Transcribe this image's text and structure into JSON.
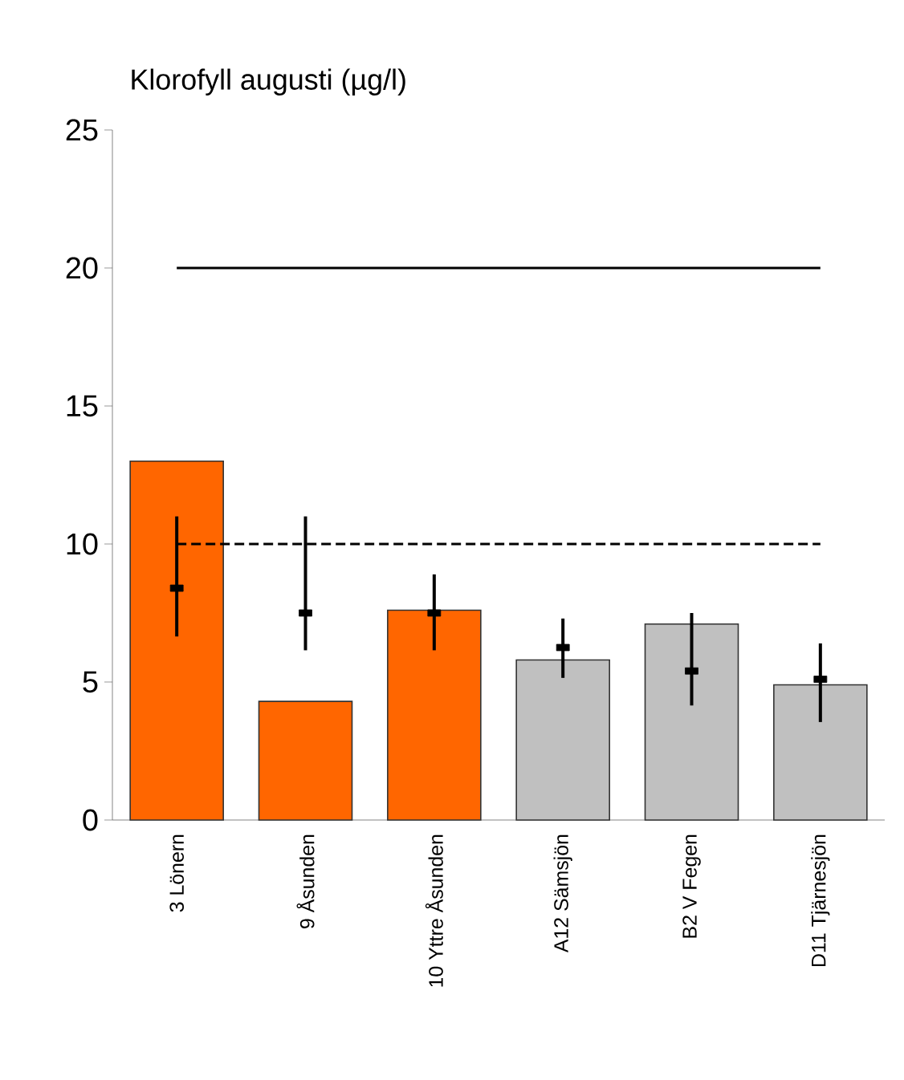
{
  "chart_data": {
    "type": "bar",
    "title": "Klorofyll augusti (µg/l)",
    "categories": [
      "3 Lönern",
      "9 Åsunden",
      "10 Yttre Åsunden",
      "A12 Sämsjön",
      "B2 V Fegen",
      "D11 Tjärnesjön"
    ],
    "series": [
      {
        "colors": [
          "#ff6600",
          "#ff6600",
          "#ff6600",
          "#c0c0c0",
          "#c0c0c0",
          "#c0c0c0"
        ],
        "values": [
          13.0,
          4.3,
          7.6,
          5.8,
          7.1,
          4.9
        ]
      },
      {
        "type": "scatter",
        "color": "#000000",
        "x": [
          "3 Lönern",
          "9 Åsunden",
          "10 Yttre Åsunden",
          "A12 Sämsjön",
          "B2 V Fegen",
          "D11 Tjärnesjön"
        ],
        "values": [
          8.4,
          7.5,
          7.5,
          6.25,
          5.4,
          5.1
        ],
        "errors": [
          [
            6.65,
            11.0
          ],
          [
            6.15,
            11.0
          ],
          [
            6.15,
            8.9
          ],
          [
            5.15,
            7.3
          ],
          [
            4.15,
            7.5
          ],
          [
            3.55,
            6.4
          ]
        ]
      }
    ],
    "ylim": [
      0,
      25
    ],
    "yticks": [
      0,
      5,
      10,
      15,
      20,
      25
    ],
    "ref_lines": [
      {
        "axis": "y",
        "value": 20,
        "line_style": "solid",
        "color": "#000000"
      },
      {
        "axis": "y",
        "value": 10,
        "line_style": "dashed",
        "color": "#000000"
      }
    ],
    "grid": false
  }
}
